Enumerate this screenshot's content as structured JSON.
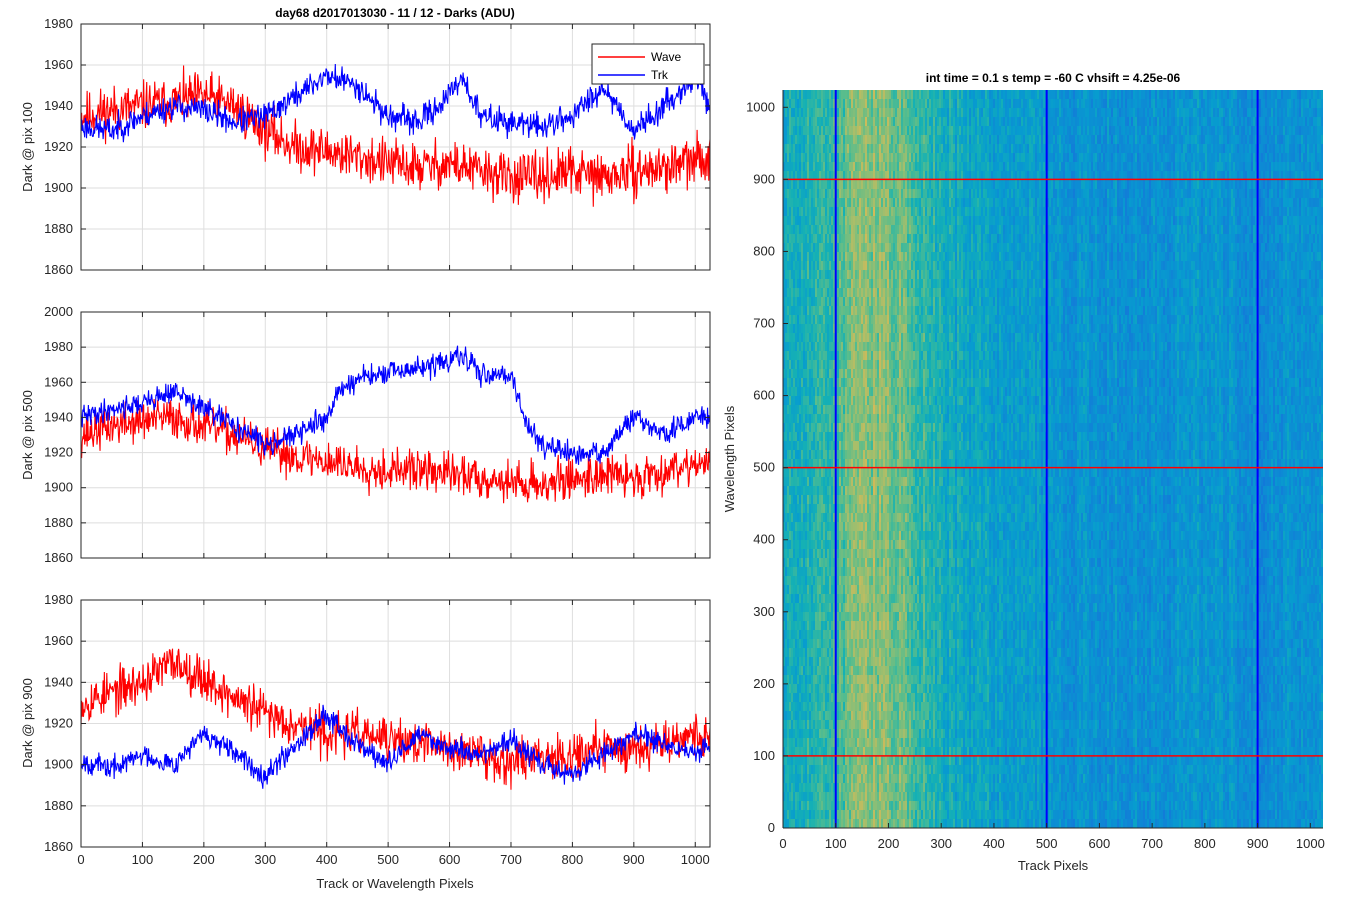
{
  "figure": {
    "colors": {
      "wave": "#ff0000",
      "trk": "#0000ff",
      "grid": "#dcdcdc",
      "axis": "#262626"
    }
  },
  "chart_data": [
    {
      "type": "line",
      "title": "day68 d2017013030 - 11 / 12 - Darks (ADU)",
      "xlabel": "",
      "ylabel": "Dark @ pix 100",
      "xlim": [
        0,
        1024
      ],
      "ylim": [
        1860,
        1980
      ],
      "xticks": [
        0,
        100,
        200,
        300,
        400,
        500,
        600,
        700,
        800,
        900,
        1000
      ],
      "yticks": [
        1860,
        1880,
        1900,
        1920,
        1940,
        1960,
        1980
      ],
      "grid": true,
      "legend": {
        "placement": "top-right",
        "entries": [
          "Wave",
          "Trk"
        ]
      },
      "series": [
        {
          "name": "Wave",
          "color": "#ff0000",
          "noise": 11,
          "seed": 11,
          "x": [
            0,
            50,
            100,
            150,
            200,
            250,
            300,
            350,
            400,
            450,
            500,
            550,
            600,
            650,
            700,
            750,
            800,
            850,
            900,
            950,
            1000,
            1024
          ],
          "y": [
            1935,
            1938,
            1940,
            1942,
            1945,
            1940,
            1928,
            1920,
            1918,
            1915,
            1912,
            1910,
            1912,
            1908,
            1905,
            1905,
            1908,
            1905,
            1908,
            1910,
            1913,
            1915
          ]
        },
        {
          "name": "Trk",
          "color": "#0000ff",
          "noise": 6,
          "seed": 23,
          "x": [
            0,
            50,
            100,
            150,
            200,
            250,
            300,
            350,
            400,
            450,
            500,
            550,
            600,
            620,
            650,
            700,
            750,
            800,
            850,
            900,
            950,
            1000,
            1024
          ],
          "y": [
            1930,
            1928,
            1935,
            1940,
            1938,
            1932,
            1935,
            1945,
            1955,
            1950,
            1935,
            1932,
            1945,
            1955,
            1935,
            1932,
            1930,
            1935,
            1950,
            1928,
            1940,
            1955,
            1940
          ]
        }
      ]
    },
    {
      "type": "line",
      "title": "",
      "xlabel": "",
      "ylabel": "Dark @ pix 500",
      "xlim": [
        0,
        1024
      ],
      "ylim": [
        1860,
        2000
      ],
      "xticks": [
        0,
        100,
        200,
        300,
        400,
        500,
        600,
        700,
        800,
        900,
        1000
      ],
      "yticks": [
        1860,
        1880,
        1900,
        1920,
        1940,
        1960,
        1980,
        2000
      ],
      "grid": true,
      "series": [
        {
          "name": "Wave",
          "color": "#ff0000",
          "noise": 11,
          "seed": 37,
          "x": [
            0,
            50,
            100,
            150,
            200,
            250,
            300,
            350,
            400,
            450,
            500,
            550,
            600,
            650,
            700,
            750,
            800,
            850,
            900,
            950,
            1000,
            1024
          ],
          "y": [
            1930,
            1935,
            1938,
            1940,
            1935,
            1930,
            1922,
            1918,
            1915,
            1912,
            1910,
            1910,
            1908,
            1906,
            1903,
            1902,
            1905,
            1908,
            1905,
            1910,
            1915,
            1912
          ]
        },
        {
          "name": "Trk",
          "color": "#0000ff",
          "noise": 6,
          "seed": 41,
          "x": [
            0,
            50,
            100,
            150,
            200,
            250,
            300,
            350,
            400,
            420,
            450,
            500,
            550,
            600,
            620,
            650,
            700,
            720,
            750,
            800,
            850,
            900,
            950,
            1000,
            1024
          ],
          "y": [
            1940,
            1945,
            1948,
            1955,
            1945,
            1935,
            1925,
            1930,
            1940,
            1955,
            1962,
            1965,
            1968,
            1972,
            1975,
            1965,
            1965,
            1940,
            1925,
            1918,
            1920,
            1940,
            1930,
            1940,
            1940
          ]
        }
      ]
    },
    {
      "type": "line",
      "title": "",
      "xlabel": "Track or Wavelength Pixels",
      "ylabel": "Dark @ pix 900",
      "xlim": [
        0,
        1024
      ],
      "ylim": [
        1860,
        1980
      ],
      "xticks": [
        0,
        100,
        200,
        300,
        400,
        500,
        600,
        700,
        800,
        900,
        1000
      ],
      "yticks": [
        1860,
        1880,
        1900,
        1920,
        1940,
        1960,
        1980
      ],
      "grid": true,
      "series": [
        {
          "name": "Wave",
          "color": "#ff0000",
          "noise": 10,
          "seed": 53,
          "x": [
            0,
            50,
            100,
            150,
            200,
            250,
            300,
            350,
            400,
            450,
            500,
            550,
            600,
            650,
            700,
            750,
            800,
            850,
            900,
            950,
            1000,
            1024
          ],
          "y": [
            1930,
            1935,
            1940,
            1950,
            1942,
            1932,
            1925,
            1920,
            1915,
            1915,
            1912,
            1910,
            1908,
            1905,
            1902,
            1905,
            1905,
            1908,
            1908,
            1912,
            1915,
            1912
          ]
        },
        {
          "name": "Trk",
          "color": "#0000ff",
          "noise": 5,
          "seed": 67,
          "x": [
            0,
            50,
            100,
            150,
            200,
            250,
            300,
            350,
            400,
            450,
            500,
            550,
            600,
            650,
            700,
            750,
            800,
            850,
            900,
            950,
            1000,
            1024
          ],
          "y": [
            1902,
            1898,
            1905,
            1900,
            1915,
            1905,
            1895,
            1910,
            1925,
            1910,
            1900,
            1915,
            1908,
            1905,
            1912,
            1900,
            1895,
            1905,
            1915,
            1910,
            1905,
            1910
          ]
        }
      ]
    },
    {
      "type": "heatmap",
      "title": "int time = 0.1 s   temp = -60 C   vhsift = 4.25e-06",
      "xlabel": "Track Pixels",
      "ylabel": "Wavelength Pixels",
      "xlim": [
        0,
        1024
      ],
      "ylim": [
        0,
        1024
      ],
      "xticks": [
        0,
        100,
        200,
        300,
        400,
        500,
        600,
        700,
        800,
        900,
        1000
      ],
      "yticks": [
        0,
        100,
        200,
        300,
        400,
        500,
        600,
        700,
        800,
        900,
        1000
      ],
      "grid": false,
      "colormap": "parula",
      "column_profile": {
        "x": [
          0,
          60,
          100,
          150,
          200,
          250,
          300,
          400,
          500,
          600,
          700,
          800,
          900,
          1024
        ],
        "level": [
          0.5,
          0.55,
          0.62,
          0.72,
          0.7,
          0.62,
          0.52,
          0.46,
          0.42,
          0.4,
          0.4,
          0.42,
          0.38,
          0.42
        ]
      },
      "vertical_markers": {
        "x": [
          100,
          500,
          900
        ],
        "color": "#0000ff"
      },
      "horizontal_markers": {
        "y": [
          100,
          500,
          900
        ],
        "color": "#ff0000"
      }
    }
  ]
}
